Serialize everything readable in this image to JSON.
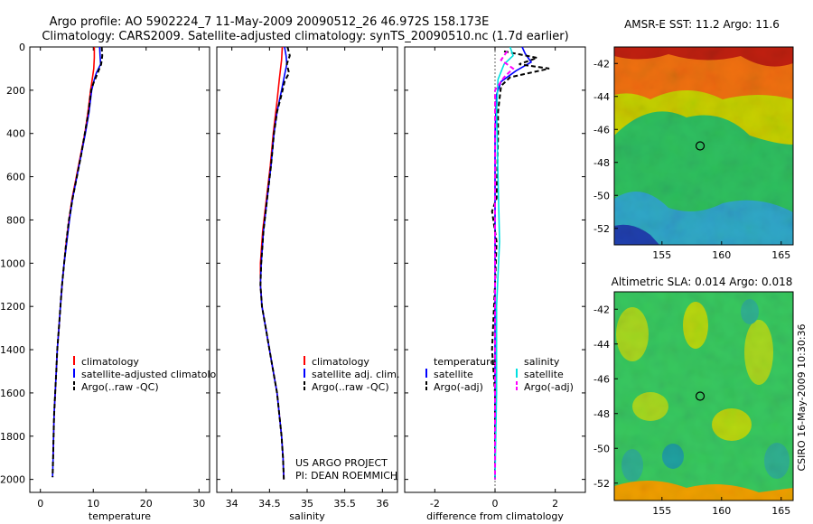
{
  "figure": {
    "title_line1": "Argo profile: AO 5902224_7 11-May-2009 20090512_26 46.972S 158.173E",
    "title_line2": "Climatology: CARS2009. Satellite-adjusted climatology: synTS_20090510.nc (1.7d earlier)",
    "side_label": "CSIRO 16-May-2009 10:30:36",
    "project_line1": "US ARGO PROJECT",
    "project_line2": "PI: DEAN ROEMMICH"
  },
  "chart_data": [
    {
      "id": "temperature",
      "type": "line",
      "xlabel": "temperature",
      "xlim": [
        -2,
        32
      ],
      "ylim": [
        0,
        2060
      ],
      "y_reversed": true,
      "xticks": [
        0,
        10,
        20,
        30
      ],
      "yticks": [
        0,
        200,
        400,
        600,
        800,
        1000,
        1200,
        1400,
        1600,
        1800,
        2000
      ],
      "legend": [
        "climatology",
        "satellite-adjusted climatology",
        "Argo(..raw -QC)"
      ],
      "series": [
        {
          "name": "climatology",
          "color": "#ff0000",
          "dash": "",
          "points": [
            [
              10.2,
              0
            ],
            [
              10.2,
              50
            ],
            [
              10.1,
              100
            ],
            [
              9.8,
              150
            ],
            [
              9.5,
              200
            ],
            [
              9.0,
              300
            ],
            [
              8.4,
              400
            ],
            [
              7.6,
              500
            ],
            [
              6.8,
              600
            ],
            [
              6.0,
              700
            ],
            [
              5.4,
              800
            ],
            [
              4.9,
              900
            ],
            [
              4.5,
              1000
            ],
            [
              4.1,
              1100
            ],
            [
              3.8,
              1200
            ],
            [
              3.5,
              1300
            ],
            [
              3.2,
              1400
            ],
            [
              3.0,
              1500
            ],
            [
              2.8,
              1600
            ],
            [
              2.6,
              1700
            ],
            [
              2.5,
              1800
            ],
            [
              2.4,
              1900
            ]
          ]
        },
        {
          "name": "satellite-adjusted climatology",
          "color": "#0000ff",
          "dash": "",
          "points": [
            [
              11.2,
              0
            ],
            [
              11.3,
              40
            ],
            [
              11.4,
              80
            ],
            [
              10.6,
              120
            ],
            [
              10.2,
              150
            ],
            [
              9.7,
              200
            ],
            [
              9.2,
              300
            ],
            [
              8.5,
              400
            ],
            [
              7.7,
              500
            ],
            [
              6.9,
              600
            ],
            [
              6.1,
              700
            ],
            [
              5.5,
              800
            ],
            [
              5.0,
              900
            ],
            [
              4.5,
              1000
            ],
            [
              4.1,
              1100
            ],
            [
              3.8,
              1200
            ],
            [
              3.5,
              1300
            ],
            [
              3.2,
              1400
            ],
            [
              3.0,
              1500
            ],
            [
              2.8,
              1600
            ],
            [
              2.6,
              1700
            ],
            [
              2.5,
              1800
            ],
            [
              2.4,
              1900
            ],
            [
              2.3,
              1990
            ]
          ]
        },
        {
          "name": "Argo(..raw -QC)",
          "color": "#000000",
          "dash": "5,3",
          "points": [
            [
              11.6,
              0
            ],
            [
              11.7,
              40
            ],
            [
              11.5,
              80
            ],
            [
              11.0,
              110
            ],
            [
              10.5,
              140
            ],
            [
              10.0,
              170
            ],
            [
              9.6,
              200
            ],
            [
              9.1,
              300
            ],
            [
              8.4,
              400
            ],
            [
              7.7,
              500
            ],
            [
              6.9,
              600
            ],
            [
              6.1,
              700
            ],
            [
              5.4,
              800
            ],
            [
              4.9,
              900
            ],
            [
              4.5,
              1000
            ],
            [
              4.1,
              1100
            ],
            [
              3.8,
              1200
            ],
            [
              3.5,
              1300
            ],
            [
              3.2,
              1400
            ],
            [
              3.0,
              1500
            ],
            [
              2.8,
              1600
            ],
            [
              2.6,
              1700
            ],
            [
              2.5,
              1800
            ],
            [
              2.4,
              1900
            ],
            [
              2.3,
              1990
            ]
          ]
        }
      ]
    },
    {
      "id": "salinity",
      "type": "line",
      "xlabel": "salinity",
      "xlim": [
        33.8,
        36.2
      ],
      "ylim": [
        0,
        2060
      ],
      "y_reversed": true,
      "xticks": [
        34,
        34.5,
        35,
        35.5,
        36
      ],
      "yticks": [
        0,
        200,
        400,
        600,
        800,
        1000,
        1200,
        1400,
        1600,
        1800,
        2000
      ],
      "legend": [
        "climatology",
        "satellite adj. clim.",
        "Argo(..raw -QC)"
      ],
      "series": [
        {
          "name": "climatology",
          "color": "#ff0000",
          "dash": "",
          "points": [
            [
              34.67,
              0
            ],
            [
              34.66,
              60
            ],
            [
              34.63,
              150
            ],
            [
              34.6,
              250
            ],
            [
              34.55,
              400
            ],
            [
              34.51,
              550
            ],
            [
              34.46,
              700
            ],
            [
              34.41,
              850
            ],
            [
              34.38,
              1000
            ],
            [
              34.38,
              1100
            ],
            [
              34.4,
              1200
            ],
            [
              34.45,
              1300
            ],
            [
              34.5,
              1400
            ],
            [
              34.55,
              1500
            ],
            [
              34.6,
              1600
            ],
            [
              34.63,
              1700
            ],
            [
              34.66,
              1800
            ],
            [
              34.68,
              1900
            ],
            [
              34.69,
              2000
            ]
          ]
        },
        {
          "name": "satellite adj. clim.",
          "color": "#0000ff",
          "dash": "",
          "points": [
            [
              34.7,
              0
            ],
            [
              34.72,
              40
            ],
            [
              34.73,
              80
            ],
            [
              34.7,
              130
            ],
            [
              34.66,
              200
            ],
            [
              34.6,
              300
            ],
            [
              34.56,
              400
            ],
            [
              34.52,
              550
            ],
            [
              34.47,
              700
            ],
            [
              34.42,
              850
            ],
            [
              34.39,
              1000
            ],
            [
              34.38,
              1100
            ],
            [
              34.4,
              1200
            ],
            [
              34.45,
              1300
            ],
            [
              34.5,
              1400
            ],
            [
              34.55,
              1500
            ],
            [
              34.6,
              1600
            ],
            [
              34.63,
              1700
            ],
            [
              34.66,
              1800
            ],
            [
              34.68,
              1900
            ],
            [
              34.69,
              2000
            ]
          ]
        },
        {
          "name": "Argo(..raw -QC)",
          "color": "#000000",
          "dash": "5,3",
          "points": [
            [
              34.74,
              0
            ],
            [
              34.77,
              40
            ],
            [
              34.73,
              80
            ],
            [
              34.76,
              120
            ],
            [
              34.7,
              160
            ],
            [
              34.66,
              220
            ],
            [
              34.6,
              300
            ],
            [
              34.56,
              400
            ],
            [
              34.52,
              550
            ],
            [
              34.47,
              700
            ],
            [
              34.42,
              850
            ],
            [
              34.39,
              1000
            ],
            [
              34.38,
              1100
            ],
            [
              34.4,
              1200
            ],
            [
              34.45,
              1300
            ],
            [
              34.5,
              1400
            ],
            [
              34.55,
              1500
            ],
            [
              34.6,
              1600
            ],
            [
              34.63,
              1700
            ],
            [
              34.66,
              1800
            ],
            [
              34.68,
              1900
            ],
            [
              34.69,
              2000
            ]
          ]
        }
      ]
    },
    {
      "id": "difference",
      "type": "line",
      "xlabel": "difference from climatology",
      "xlim": [
        -3,
        3
      ],
      "ylim": [
        0,
        2060
      ],
      "y_reversed": true,
      "xticks": [
        -2,
        0,
        2
      ],
      "yticks": [
        0,
        200,
        400,
        600,
        800,
        1000,
        1200,
        1400,
        1600,
        1800,
        2000
      ],
      "legend_left_title": "temperature",
      "legend_left": [
        "satellite",
        "Argo(-adj)"
      ],
      "legend_right_title": "salinity",
      "legend_right": [
        "satellite",
        "Argo(-adj)"
      ],
      "series": [
        {
          "name": "temperature satellite",
          "color": "#0000ff",
          "dash": "",
          "points": [
            [
              0.9,
              0
            ],
            [
              1.0,
              30
            ],
            [
              1.2,
              70
            ],
            [
              0.7,
              110
            ],
            [
              0.2,
              160
            ],
            [
              0.05,
              220
            ],
            [
              0,
              400
            ],
            [
              0,
              800
            ],
            [
              0,
              1200
            ],
            [
              0,
              1600
            ],
            [
              0,
              2000
            ]
          ]
        },
        {
          "name": "temperature Argo(-adj)",
          "color": "#000000",
          "dash": "5,3",
          "points": [
            [
              0.3,
              20
            ],
            [
              1.4,
              50
            ],
            [
              0.8,
              80
            ],
            [
              1.8,
              100
            ],
            [
              0.5,
              140
            ],
            [
              0.2,
              180
            ],
            [
              0.1,
              300
            ],
            [
              0.1,
              420
            ],
            [
              0.05,
              700
            ],
            [
              -0.1,
              760
            ],
            [
              0.05,
              900
            ],
            [
              0,
              1100
            ],
            [
              -0.1,
              1400
            ],
            [
              0,
              1600
            ],
            [
              0,
              2000
            ]
          ]
        },
        {
          "name": "salinity satellite",
          "color": "#00e0e0",
          "dash": "",
          "points": [
            [
              0.5,
              0
            ],
            [
              0.6,
              40
            ],
            [
              0.3,
              80
            ],
            [
              0.1,
              150
            ],
            [
              0.05,
              300
            ],
            [
              0.1,
              600
            ],
            [
              0.15,
              900
            ],
            [
              0.05,
              1200
            ],
            [
              0.05,
              1600
            ],
            [
              0,
              2000
            ]
          ]
        },
        {
          "name": "salinity Argo(-adj)",
          "color": "#ff00ff",
          "dash": "5,3",
          "points": [
            [
              0.4,
              20
            ],
            [
              0.2,
              60
            ],
            [
              0.6,
              100
            ],
            [
              0.3,
              140
            ],
            [
              0,
              200
            ],
            [
              0,
              2000
            ]
          ]
        }
      ]
    },
    {
      "id": "sst-map",
      "type": "heatmap",
      "title": "AMSR-E SST: 11.2 Argo: 11.6",
      "xlim": [
        151,
        166
      ],
      "ylim": [
        -53,
        -41
      ],
      "xticks": [
        155,
        160,
        165
      ],
      "yticks": [
        -42,
        -44,
        -46,
        -48,
        -50,
        -52
      ],
      "marker": {
        "lon": 158.2,
        "lat": -47.0
      }
    },
    {
      "id": "sla-map",
      "type": "heatmap",
      "title": "Altimetric SLA: 0.014 Argo: 0.018",
      "xlim": [
        151,
        166
      ],
      "ylim": [
        -53,
        -41
      ],
      "xticks": [
        155,
        160,
        165
      ],
      "yticks": [
        -42,
        -44,
        -46,
        -48,
        -50,
        -52
      ],
      "marker": {
        "lon": 158.2,
        "lat": -47.0
      }
    }
  ]
}
